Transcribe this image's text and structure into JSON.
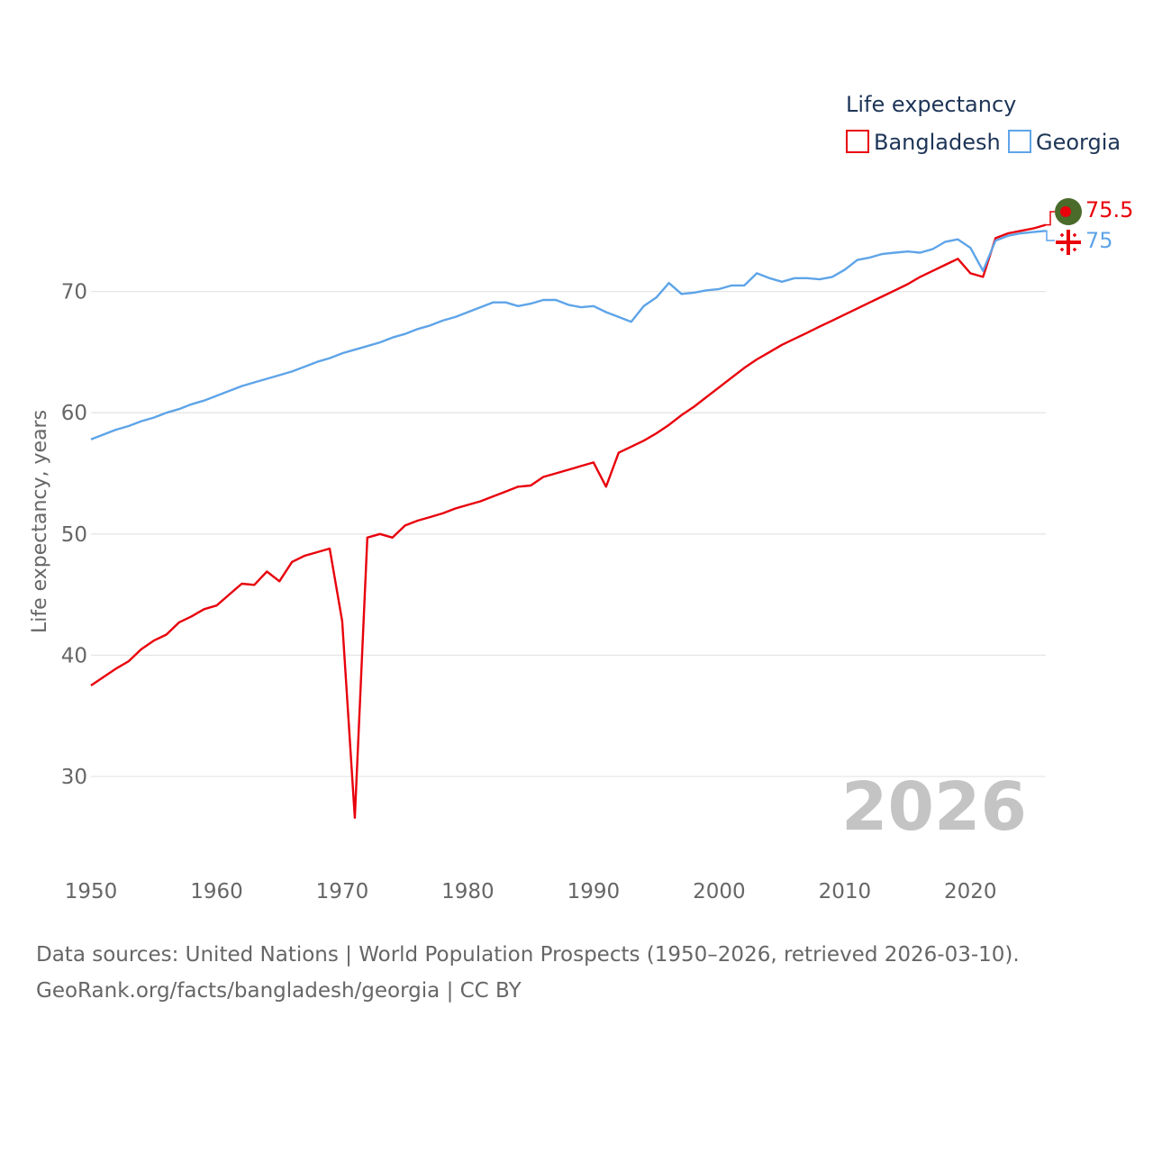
{
  "chart_data": {
    "type": "line",
    "legend_title": "Life expectancy",
    "ylabel": "Life expectancy, years",
    "xlabel": "",
    "xlim": [
      1950,
      2026
    ],
    "ylim": [
      24,
      78
    ],
    "x_ticks": [
      1950,
      1960,
      1970,
      1980,
      1990,
      2000,
      2010,
      2020
    ],
    "y_ticks": [
      30,
      40,
      50,
      60,
      70
    ],
    "current_year": "2026",
    "x": [
      1950,
      1951,
      1952,
      1953,
      1954,
      1955,
      1956,
      1957,
      1958,
      1959,
      1960,
      1961,
      1962,
      1963,
      1964,
      1965,
      1966,
      1967,
      1968,
      1969,
      1970,
      1971,
      1972,
      1973,
      1974,
      1975,
      1976,
      1977,
      1978,
      1979,
      1980,
      1981,
      1982,
      1983,
      1984,
      1985,
      1986,
      1987,
      1988,
      1989,
      1990,
      1991,
      1992,
      1993,
      1994,
      1995,
      1996,
      1997,
      1998,
      1999,
      2000,
      2001,
      2002,
      2003,
      2004,
      2005,
      2006,
      2007,
      2008,
      2009,
      2010,
      2011,
      2012,
      2013,
      2014,
      2015,
      2016,
      2017,
      2018,
      2019,
      2020,
      2021,
      2022,
      2023,
      2024,
      2025,
      2026
    ],
    "series": [
      {
        "name": "Bangladesh",
        "color": "#e8000b",
        "end_label": "75.5",
        "values": [
          37.5,
          38.2,
          38.9,
          39.5,
          40.5,
          41.2,
          41.7,
          42.7,
          43.2,
          43.8,
          44.1,
          45.0,
          45.9,
          45.8,
          46.9,
          46.1,
          47.7,
          48.2,
          48.5,
          48.8,
          42.8,
          26.6,
          49.7,
          50.0,
          49.7,
          50.7,
          51.1,
          51.4,
          51.7,
          52.1,
          52.4,
          52.7,
          53.1,
          53.5,
          53.9,
          54.0,
          54.7,
          55.0,
          55.3,
          55.6,
          55.9,
          53.9,
          56.7,
          57.2,
          57.7,
          58.3,
          59.0,
          59.8,
          60.5,
          61.3,
          62.1,
          62.9,
          63.7,
          64.4,
          65.0,
          65.6,
          66.1,
          66.6,
          67.1,
          67.6,
          68.1,
          68.6,
          69.1,
          69.6,
          70.1,
          70.6,
          71.2,
          71.7,
          72.2,
          72.7,
          71.5,
          71.2,
          74.4,
          74.8,
          75.0,
          75.2,
          75.5
        ]
      },
      {
        "name": "Georgia",
        "color": "#5ea4e8",
        "end_label": "75",
        "values": [
          57.8,
          58.2,
          58.6,
          58.9,
          59.3,
          59.6,
          60.0,
          60.3,
          60.7,
          61.0,
          61.4,
          61.8,
          62.2,
          62.5,
          62.8,
          63.1,
          63.4,
          63.8,
          64.2,
          64.5,
          64.9,
          65.2,
          65.5,
          65.8,
          66.2,
          66.5,
          66.9,
          67.2,
          67.6,
          67.9,
          68.3,
          68.7,
          69.1,
          69.1,
          68.8,
          69.0,
          69.3,
          69.3,
          68.9,
          68.7,
          68.8,
          68.3,
          67.9,
          67.5,
          68.8,
          69.5,
          70.7,
          69.8,
          69.9,
          70.1,
          70.2,
          70.5,
          70.5,
          71.5,
          71.1,
          70.8,
          71.1,
          71.1,
          71.0,
          71.2,
          71.8,
          72.6,
          72.8,
          73.1,
          73.2,
          73.3,
          73.2,
          73.5,
          74.1,
          74.3,
          73.6,
          71.7,
          74.2,
          74.6,
          74.8,
          74.9,
          75.0
        ]
      }
    ]
  },
  "flags": {
    "bangladesh": {
      "field_color": "#4a6b2a",
      "disc_color": "#e8000b"
    },
    "georgia": {
      "field_color": "#ffffff",
      "cross_color": "#e8000b"
    }
  },
  "source": {
    "line1": "Data sources: United Nations | World Population Prospects (1950–2026, retrieved 2026-03-10).",
    "line2": "GeoRank.org/facts/bangladesh/georgia | CC BY"
  }
}
